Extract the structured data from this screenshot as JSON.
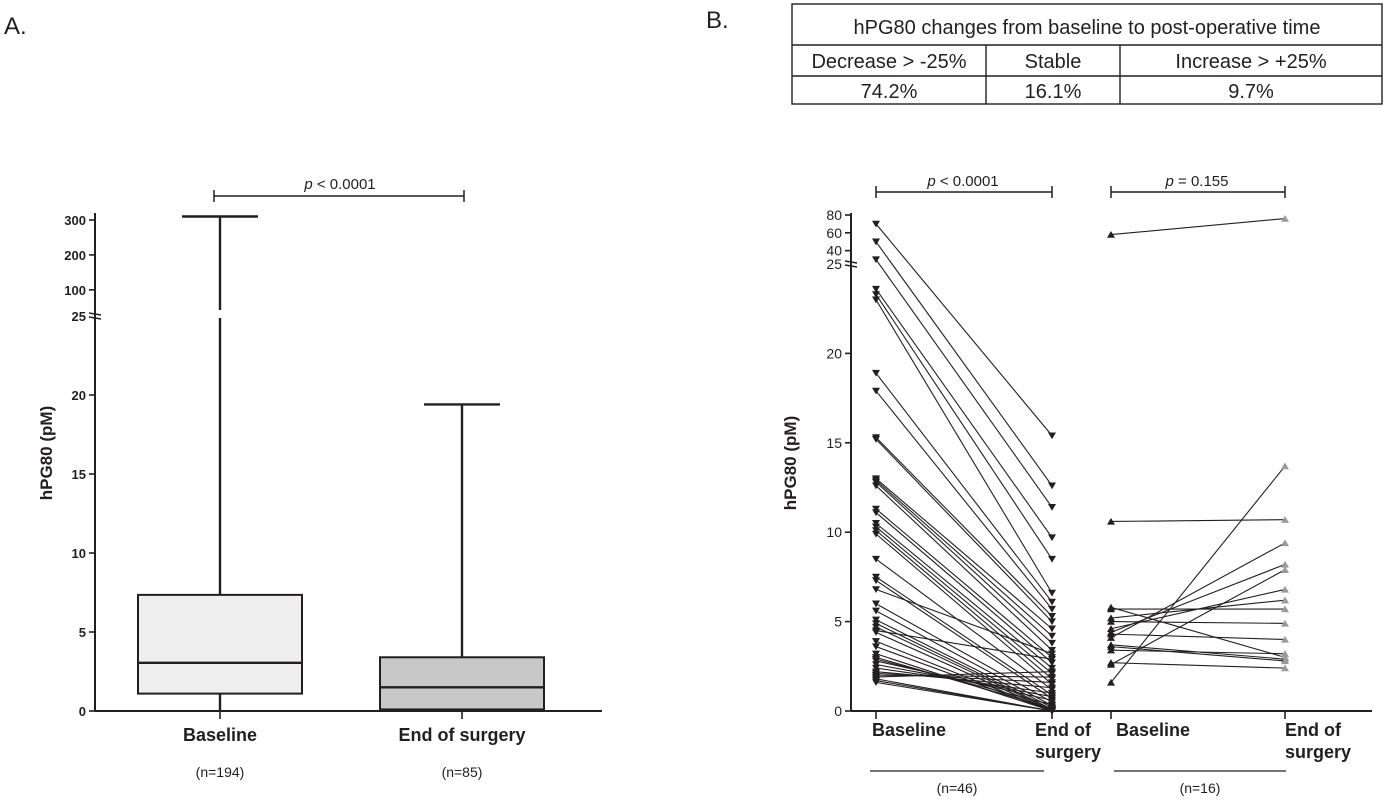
{
  "panels": {
    "a_label": "A.",
    "b_label": "B."
  },
  "table": {
    "title": "hPG80 changes from baseline to post-operative time",
    "headers": [
      "Decrease > -25%",
      "Stable",
      "Increase > +25%"
    ],
    "values": [
      "74.2%",
      "16.1%",
      "9.7%"
    ]
  },
  "chart_data": [
    {
      "type": "box",
      "panel": "A",
      "ylabel": "hPG80 (pM)",
      "yaxis": {
        "broken": true,
        "lower_range": [
          0,
          25
        ],
        "lower_ticks": [
          "0",
          "5",
          "10",
          "15",
          "20"
        ],
        "upper_ticks": [
          "25",
          "100",
          "200",
          "300"
        ]
      },
      "categories": [
        "Baseline",
        "End of surgery"
      ],
      "n_labels": [
        "(n=194)",
        "(n=85)"
      ],
      "boxes": [
        {
          "name": "Baseline",
          "min": 0,
          "q1": 1.1,
          "median": 3.05,
          "q3": 7.35,
          "max": 310,
          "fill": "#eeeeee"
        },
        {
          "name": "End of surgery",
          "min": 0,
          "q1": 0.1,
          "median": 1.5,
          "q3": 3.4,
          "max": 19.4,
          "fill": "#c8c8c8"
        }
      ],
      "significance": {
        "prefix": "p",
        "text": " < 0.0001"
      }
    },
    {
      "type": "paired-line",
      "panel": "B",
      "ylabel": "hPG80 (pM)",
      "yaxis": {
        "broken": true,
        "lower_range": [
          0,
          25
        ],
        "lower_ticks": [
          "0",
          "5",
          "10",
          "15",
          "20"
        ],
        "upper_ticks": [
          "25",
          "40",
          "60",
          "80"
        ]
      },
      "groups": [
        {
          "labels": [
            "Baseline",
            "End of surgery"
          ],
          "n_label": "(n=46)",
          "significance": {
            "prefix": "p",
            "text": " < 0.0001"
          },
          "marker": "down",
          "pairs": [
            [
              70,
              15.4
            ],
            [
              50,
              12.6
            ],
            [
              30,
              11.4
            ],
            [
              23.6,
              9.7
            ],
            [
              23.3,
              8.5
            ],
            [
              23,
              6.6
            ],
            [
              18.9,
              6.1
            ],
            [
              17.9,
              5.7
            ],
            [
              15.3,
              5.3
            ],
            [
              15.2,
              5.0
            ],
            [
              13.0,
              4.6
            ],
            [
              12.9,
              4.2
            ],
            [
              12.8,
              3.8
            ],
            [
              12.6,
              3.4
            ],
            [
              11.3,
              3.0
            ],
            [
              11.1,
              2.7
            ],
            [
              10.5,
              2.4
            ],
            [
              10.3,
              2.1
            ],
            [
              10.1,
              1.8
            ],
            [
              9.9,
              1.5
            ],
            [
              8.5,
              1.2
            ],
            [
              7.5,
              0.9
            ],
            [
              7.3,
              0.7
            ],
            [
              6.0,
              0.5
            ],
            [
              5.6,
              0.3
            ],
            [
              5.1,
              0.2
            ],
            [
              4.9,
              0.1
            ],
            [
              4.7,
              0.05
            ],
            [
              4.4,
              0.0
            ],
            [
              3.9,
              0.0
            ],
            [
              3.6,
              0.0
            ],
            [
              3.2,
              0.0
            ],
            [
              3.0,
              0.15
            ],
            [
              2.9,
              0.35
            ],
            [
              2.8,
              0.6
            ],
            [
              2.6,
              0.8
            ],
            [
              2.4,
              1.0
            ],
            [
              2.2,
              1.3
            ],
            [
              2.1,
              1.6
            ],
            [
              2.0,
              1.9
            ],
            [
              1.9,
              2.2
            ],
            [
              1.8,
              0.0
            ],
            [
              1.7,
              0.0
            ],
            [
              1.6,
              0.0
            ],
            [
              4.5,
              2.9
            ],
            [
              6.8,
              3.2
            ]
          ]
        },
        {
          "labels": [
            "Baseline",
            "End of surgery"
          ],
          "n_label": "(n=16)",
          "significance": {
            "prefix": "p",
            "text": " = 0.155"
          },
          "marker": "up",
          "pairs": [
            [
              58,
              76
            ],
            [
              10.6,
              10.7
            ],
            [
              5.8,
              3.0
            ],
            [
              5.7,
              5.7
            ],
            [
              5.2,
              6.2
            ],
            [
              5.0,
              4.9
            ],
            [
              4.6,
              6.8
            ],
            [
              4.4,
              8.2
            ],
            [
              4.3,
              4.0
            ],
            [
              4.1,
              9.4
            ],
            [
              3.7,
              2.9
            ],
            [
              3.6,
              2.8
            ],
            [
              3.4,
              3.2
            ],
            [
              2.7,
              2.4
            ],
            [
              2.6,
              7.9
            ],
            [
              1.6,
              13.7
            ]
          ]
        }
      ]
    }
  ]
}
